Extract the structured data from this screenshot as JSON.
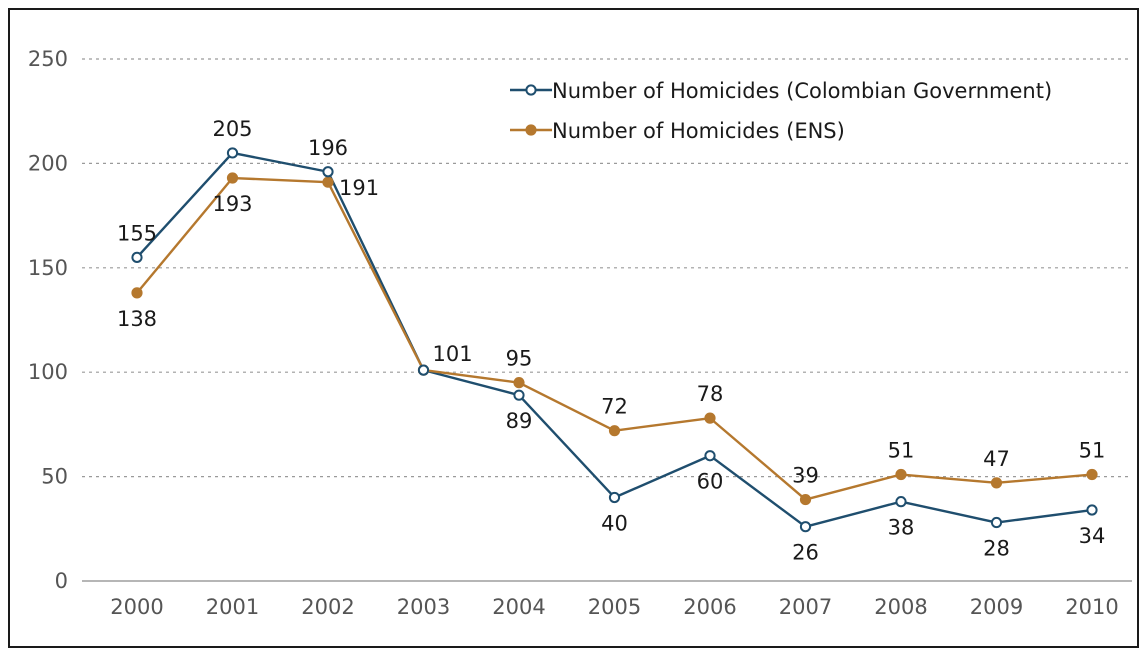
{
  "chart_data": {
    "type": "line",
    "title": "",
    "xlabel": "",
    "ylabel": "",
    "ylim": [
      0,
      250
    ],
    "yticks": [
      0,
      50,
      100,
      150,
      200,
      250
    ],
    "grid": true,
    "legend_position": "top-right",
    "categories": [
      "2000",
      "2001",
      "2002",
      "2003",
      "2004",
      "2005",
      "2006",
      "2007",
      "2008",
      "2009",
      "2010"
    ],
    "series": [
      {
        "name": "Number of Homicides (Colombian Government)",
        "color": "#1f4e6e",
        "marker": "open-circle",
        "values": [
          155,
          205,
          196,
          101,
          89,
          40,
          60,
          26,
          38,
          28,
          34
        ],
        "labels": [
          "155",
          "205",
          "196",
          "",
          "89",
          "40",
          "60",
          "26",
          "38",
          "28",
          "34"
        ]
      },
      {
        "name": "Number of Homicides (ENS)",
        "color": "#b5782e",
        "marker": "filled-circle",
        "values": [
          138,
          193,
          191,
          101,
          95,
          72,
          78,
          39,
          51,
          47,
          51
        ],
        "labels": [
          "138",
          "193",
          "191",
          "101",
          "95",
          "72",
          "78",
          "39",
          "51",
          "47",
          "51"
        ]
      }
    ]
  }
}
